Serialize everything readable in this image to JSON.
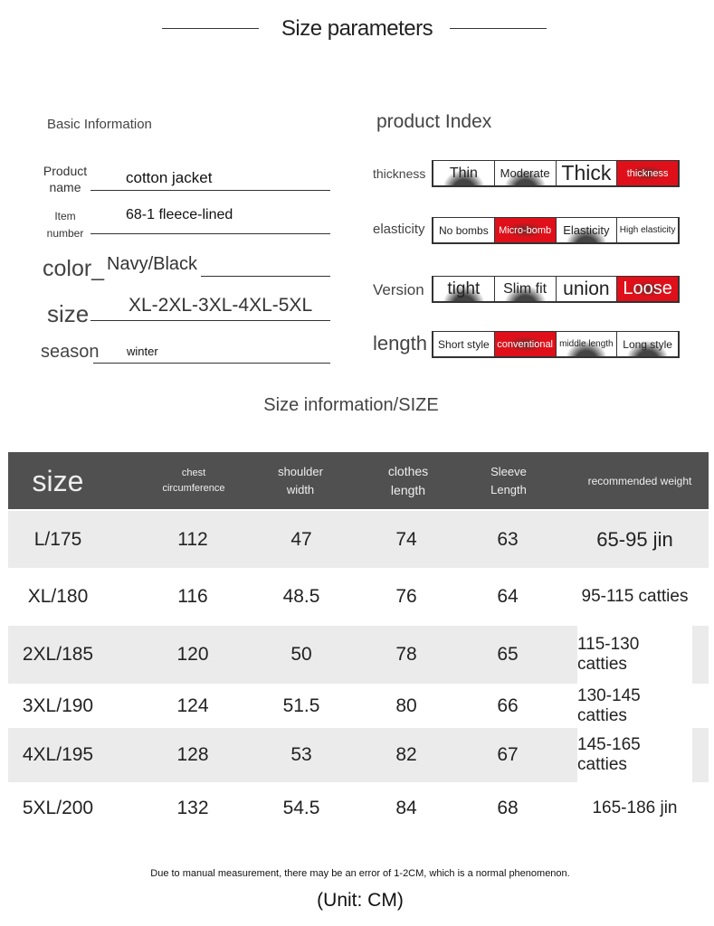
{
  "title": "Size parameters",
  "basic": {
    "heading": "Basic Information",
    "product_name_label": "Product name",
    "product_name": "cotton jacket",
    "item_number_label": "Item number",
    "item_number": "68-1 fleece-lined",
    "color_label": "color_",
    "color": "Navy/Black",
    "size_label": "size",
    "size": "XL-2XL-3XL-4XL-5XL",
    "season_label": "season",
    "season": "winter"
  },
  "index": {
    "heading": "product Index",
    "rows": [
      {
        "label": "thickness",
        "options": [
          "Thin",
          "Moderate",
          "Thick",
          "thickness"
        ],
        "selected": 3
      },
      {
        "label": "elasticity",
        "options": [
          "No bombs",
          "Micro-bomb",
          "Elasticity",
          "High elasticity"
        ],
        "selected": 1
      },
      {
        "label": "Version",
        "options": [
          "tight",
          "Slim fit",
          "union",
          "Loose"
        ],
        "selected": 3
      },
      {
        "label": "length",
        "options": [
          "Short style",
          "conventional",
          "middle length",
          "Long style"
        ],
        "selected": 1
      }
    ]
  },
  "accent_color": "#e0101a",
  "size_info_title": "Size information/SIZE",
  "table": {
    "headers": [
      "size",
      "chest circumference",
      "shoulder width",
      "clothes length",
      "Sleeve Length",
      "recommended weight"
    ],
    "rows": [
      [
        "L/175",
        "112",
        "47",
        "74",
        "63",
        "65-95 jin"
      ],
      [
        "XL/180",
        "116",
        "48.5",
        "76",
        "64",
        "95-115 catties"
      ],
      [
        "2XL/185",
        "120",
        "50",
        "78",
        "65",
        "115-130 catties"
      ],
      [
        "3XL/190",
        "124",
        "51.5",
        "80",
        "66",
        "130-145 catties"
      ],
      [
        "4XL/195",
        "128",
        "53",
        "82",
        "67",
        "145-165 catties"
      ],
      [
        "5XL/200",
        "132",
        "54.5",
        "84",
        "68",
        "165-186 jin"
      ]
    ]
  },
  "note": "Due to manual measurement, there may be an error of 1-2CM, which is a normal phenomenon.",
  "unit": "(Unit: CM)"
}
